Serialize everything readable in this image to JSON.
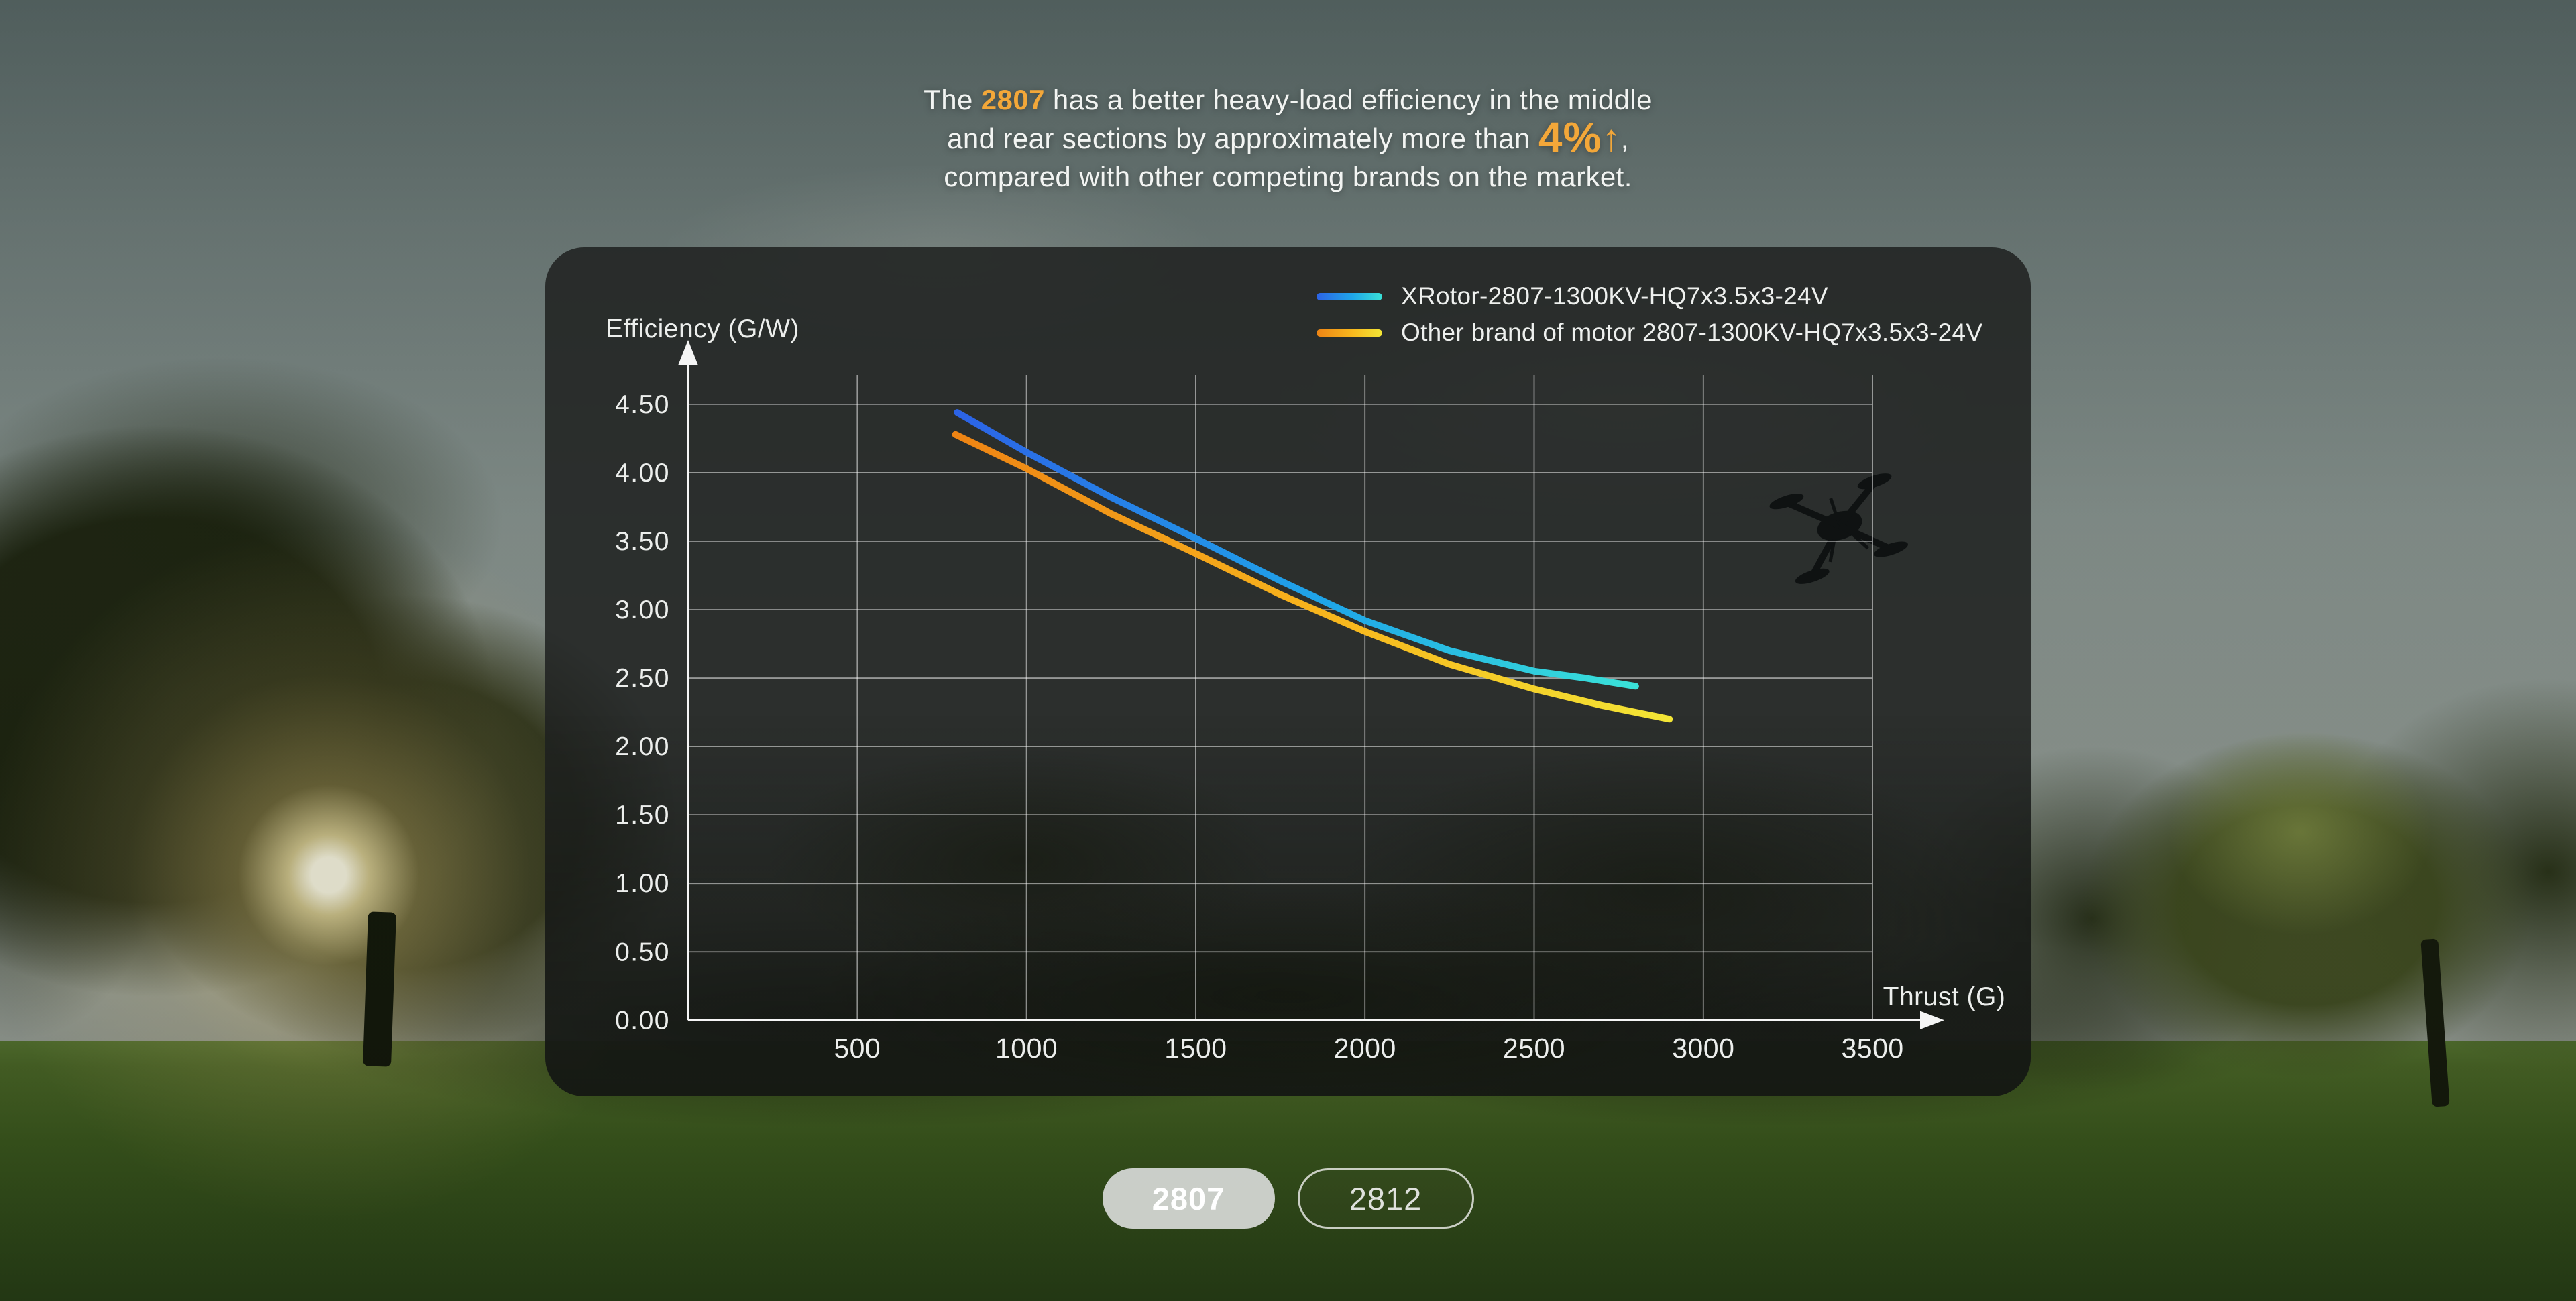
{
  "headline": {
    "line1_pre": "The ",
    "line1_model": "2807",
    "line1_post": " has a better heavy-load efficiency in the middle",
    "line2_pre": "and rear sections by approximately more than ",
    "line2_pct": "4%",
    "line2_arrow": "↑",
    "line2_post": ",",
    "line3": "compared with other competing brands on the market.",
    "accent_color": "#f3a739"
  },
  "chart_data": {
    "type": "line",
    "xlabel": "Thrust (G)",
    "ylabel": "Efficiency (G/W)",
    "xlim": [
      0,
      3500
    ],
    "ylim": [
      0,
      4.5
    ],
    "grid": true,
    "legend_position": "top-right",
    "xticks": [
      500,
      1000,
      1500,
      2000,
      2500,
      3000,
      3500
    ],
    "xtick_labels": [
      "500",
      "1000",
      "1500",
      "2000",
      "2500",
      "3000",
      "3500"
    ],
    "yticks": [
      0,
      0.5,
      1,
      1.5,
      2,
      2.5,
      3,
      3.5,
      4,
      4.5
    ],
    "ytick_labels": [
      "0.00",
      "0.50",
      "1.00",
      "1.50",
      "2.00",
      "2.50",
      "3.00",
      "3.50",
      "4.00",
      "4.50"
    ],
    "grid_color": "rgba(255,255,255,0.5)",
    "axis_color": "#f5f5f5",
    "tick_text_color": "#eceeec",
    "series": [
      {
        "name": "XRotor-2807-1300KV-HQ7x3.5x3-24V",
        "color_start": "#2c63e6",
        "color_mid": "#1fa6e8",
        "color_end": "#3ae2d8",
        "points": [
          [
            795,
            4.44
          ],
          [
            1000,
            4.15
          ],
          [
            1250,
            3.82
          ],
          [
            1500,
            3.52
          ],
          [
            1750,
            3.21
          ],
          [
            2000,
            2.92
          ],
          [
            2250,
            2.7
          ],
          [
            2500,
            2.55
          ],
          [
            2650,
            2.5
          ],
          [
            2800,
            2.44
          ]
        ]
      },
      {
        "name": "Other brand of motor 2807-1300KV-HQ7x3.5x3-24V",
        "color_start": "#ee8414",
        "color_mid": "#f7b81e",
        "color_end": "#f3e636",
        "points": [
          [
            790,
            4.28
          ],
          [
            1000,
            4.03
          ],
          [
            1250,
            3.7
          ],
          [
            1500,
            3.41
          ],
          [
            1750,
            3.11
          ],
          [
            2000,
            2.84
          ],
          [
            2250,
            2.6
          ],
          [
            2500,
            2.42
          ],
          [
            2700,
            2.3
          ],
          [
            2900,
            2.2
          ]
        ]
      }
    ]
  },
  "model_toggle": {
    "items": [
      {
        "label": "2807",
        "active": true
      },
      {
        "label": "2812",
        "active": false
      }
    ]
  }
}
